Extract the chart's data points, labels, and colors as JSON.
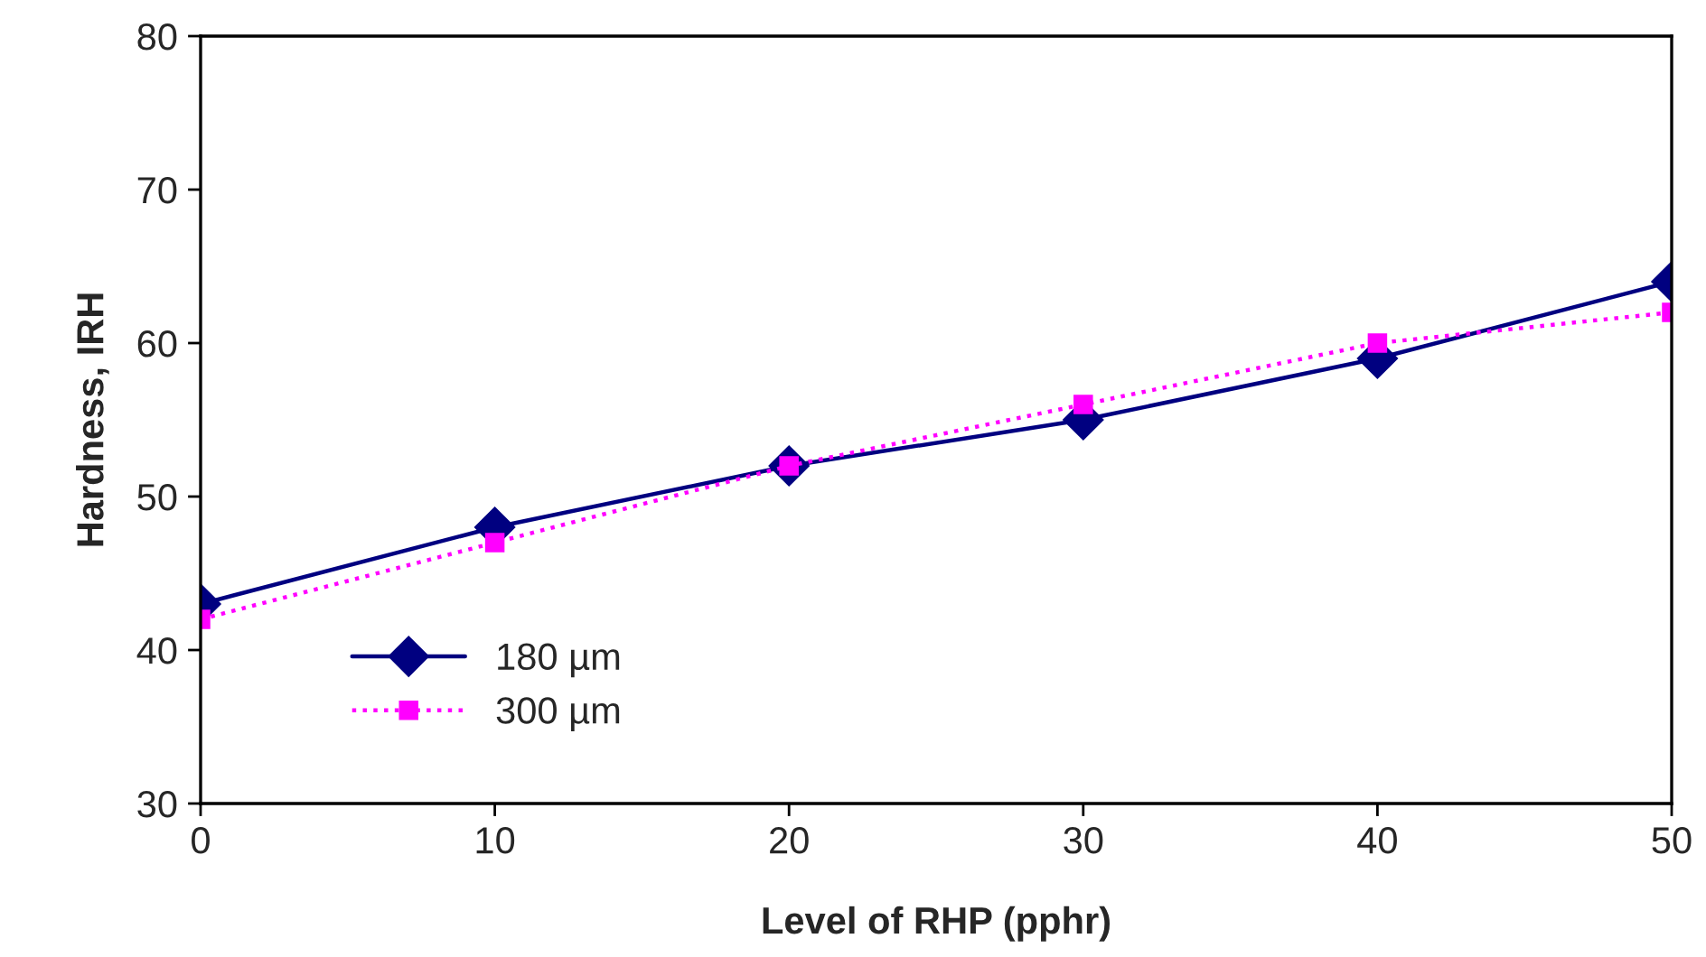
{
  "chart_data": {
    "type": "line",
    "xlabel": "Level of RHP (pphr)",
    "ylabel": "Hardness, IRH",
    "x": [
      0,
      10,
      20,
      30,
      40,
      50
    ],
    "series": [
      {
        "name": "180 µm",
        "color": "#000080",
        "values": [
          43,
          48,
          52,
          55,
          59,
          64
        ],
        "marker": "diamond",
        "line_style": "solid"
      },
      {
        "name": "300 µm",
        "color": "#ff00ff",
        "values": [
          42,
          47,
          52,
          56,
          60,
          62
        ],
        "marker": "square",
        "line_style": "dotted"
      }
    ],
    "xlim": [
      0,
      50
    ],
    "xticks": [
      0,
      10,
      20,
      30,
      40,
      50
    ],
    "ylim": [
      30,
      80
    ],
    "yticks": [
      30,
      40,
      50,
      60,
      70,
      80
    ],
    "grid": false,
    "legend": "bottom left"
  }
}
